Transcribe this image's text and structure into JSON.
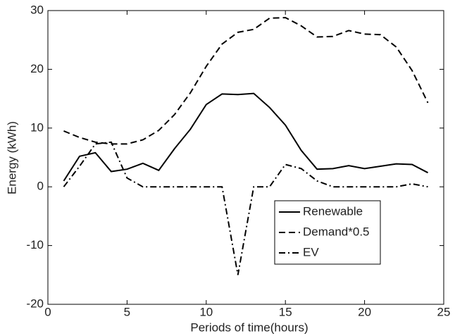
{
  "chart_data": {
    "type": "line",
    "x_label": "Periods of time(hours)",
    "y_label": "Energy (kWh)",
    "x": [
      1,
      2,
      3,
      4,
      5,
      6,
      7,
      8,
      9,
      10,
      11,
      12,
      13,
      14,
      15,
      16,
      17,
      18,
      19,
      20,
      21,
      22,
      23,
      24
    ],
    "series": [
      {
        "name": "Renewable",
        "color": "#000000",
        "style": "solid",
        "values": [
          1,
          5.2,
          5.8,
          2.6,
          3,
          4,
          2.8,
          6.5,
          9.8,
          14,
          15.8,
          15.7,
          15.9,
          13.5,
          10.5,
          6.2,
          3,
          3.1,
          3.6,
          3.1,
          3.5,
          3.9,
          3.8,
          2.4
        ]
      },
      {
        "name": "Demand*0.5",
        "color": "#000000",
        "style": "dashed",
        "values": [
          9.5,
          8.4,
          7.6,
          7.3,
          7.3,
          8,
          9.6,
          12.3,
          16,
          20.5,
          24.3,
          26.3,
          26.8,
          28.7,
          28.8,
          27.4,
          25.5,
          25.6,
          26.6,
          26,
          25.9,
          23.8,
          19.8,
          14.3
        ]
      },
      {
        "name": "EV",
        "color": "#000000",
        "style": "dashdot",
        "values": [
          0,
          3.5,
          7.3,
          7.6,
          1.5,
          0,
          0,
          0,
          0,
          0,
          0,
          -15,
          0,
          0,
          3.8,
          3.1,
          1,
          0,
          0,
          0,
          0,
          0,
          0.5,
          0
        ]
      }
    ],
    "xlim": [
      0,
      25
    ],
    "xticks": [
      0,
      5,
      10,
      15,
      20,
      25
    ],
    "ylim": [
      -20,
      30
    ],
    "yticks": [
      -20,
      -10,
      0,
      10,
      20,
      30
    ],
    "grid": false,
    "legend_position": "lower right"
  }
}
